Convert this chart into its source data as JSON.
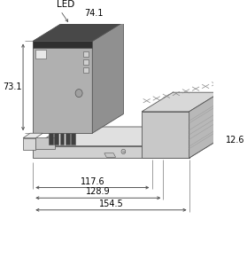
{
  "line_color": "#555555",
  "font_size": 7.0,
  "dimensions": {
    "width_74": "74.1",
    "height_73": "73.1",
    "width_117": "117.6",
    "width_128": "128.9",
    "width_154": "154.5",
    "depth_12": "12.6",
    "led_label": "LED"
  },
  "colors": {
    "module_front": "#b0b0b0",
    "module_top": "#c8c8c8",
    "module_right": "#909090",
    "module_top_strip": "#303030",
    "module_top_strip_top": "#484848",
    "rail_front": "#d0d0d0",
    "rail_top": "#e0e0e0",
    "rail_right": "#b0b0b0",
    "tb_front": "#c8c8c8",
    "tb_top": "#d8d8d8",
    "tb_right": "#b8b8b8",
    "connector_front": "#c0c0c0",
    "connector_top": "#d0d0d0",
    "pin_color": "#404040",
    "hatch_color": "#888888",
    "bg": "#ffffff"
  }
}
